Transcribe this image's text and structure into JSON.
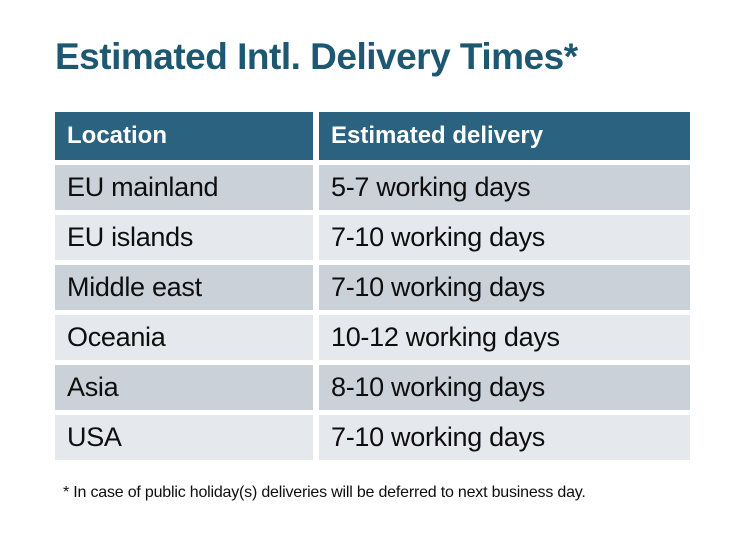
{
  "title": "Estimated Intl. Delivery Times*",
  "table": {
    "headers": [
      "Location",
      "Estimated delivery"
    ],
    "rows": [
      {
        "location": "EU mainland",
        "delivery": "5-7 working days"
      },
      {
        "location": "EU islands",
        "delivery": "7-10 working days"
      },
      {
        "location": "Middle east",
        "delivery": "7-10 working days"
      },
      {
        "location": "Oceania",
        "delivery": "10-12 working days"
      },
      {
        "location": "Asia",
        "delivery": "8-10 working days"
      },
      {
        "location": "USA",
        "delivery": "7-10 working days"
      }
    ]
  },
  "footnote": "* In case of public holiday(s) deliveries will be deferred to next business day.",
  "colors": {
    "page-bg": "#FFFFFF",
    "title-text": "#1D5872",
    "header-bg": "#2A627F",
    "header-text": "#FFFFFF",
    "row-dark": "#CBD1D8",
    "row-light": "#E5E8EC",
    "body-text": "#0E0E0E"
  }
}
